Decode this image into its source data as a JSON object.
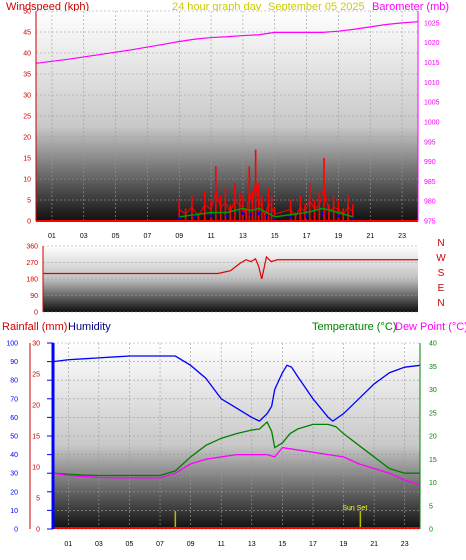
{
  "header": {
    "left_title": "Windspeed (kph)",
    "center_title": "24 hour graph day",
    "date": "September 05 2025",
    "right_title": "Barometer (mb)"
  },
  "middle": {
    "direction_letters": [
      "N",
      "W",
      "S",
      "E",
      "N"
    ]
  },
  "bottom": {
    "rain_title": "Rainfall (mm)",
    "humidity_title": "Humidity",
    "temp_title": "Temperature (°C)",
    "dew_title": "Dew Point (°C)",
    "sun_set_label": "Sun Set"
  },
  "colors": {
    "windspeed": "#ff0000",
    "gust": "#ff0000",
    "wind_avg": "#00a000",
    "wind_dir_scatter": "#0000ff",
    "barometer": "#ff00ff",
    "direction": "#e00000",
    "humidity": "#0000ff",
    "temperature": "#008000",
    "dew_point": "#ff00ff",
    "rain": "#ff0000",
    "sun_marker": "#b8b800",
    "title_red": "#cc0000",
    "title_yellow": "#cccc00",
    "title_magenta": "#ff00ff",
    "title_blue": "#000080",
    "title_green": "#008000"
  },
  "chart_data": [
    {
      "type": "line",
      "name": "wind-and-barometer",
      "x_ticks": [
        "01",
        "03",
        "05",
        "07",
        "09",
        "11",
        "13",
        "15",
        "17",
        "19",
        "21",
        "23"
      ],
      "x_range": [
        0,
        24
      ],
      "ylim_left": [
        0,
        50
      ],
      "yticks_left": [
        0,
        5,
        10,
        15,
        20,
        25,
        30,
        35,
        40,
        45,
        50
      ],
      "ylim_right": [
        975,
        1028
      ],
      "yticks_right": [
        975,
        980,
        985,
        990,
        995,
        1000,
        1005,
        1010,
        1015,
        1020,
        1025
      ],
      "grid": true,
      "series": [
        {
          "axis": "right",
          "x": [
            0,
            1,
            2,
            3,
            4,
            5,
            6,
            7,
            8,
            9,
            10,
            11,
            12,
            13,
            14,
            15,
            16,
            17,
            18,
            19,
            20,
            21,
            22,
            23,
            24
          ],
          "values": [
            1014.8,
            1015.3,
            1015.8,
            1016.4,
            1017.0,
            1017.6,
            1018.2,
            1018.9,
            1019.6,
            1020.3,
            1020.9,
            1021.3,
            1021.5,
            1021.8,
            1022.0,
            1022.6,
            1022.6,
            1022.6,
            1022.6,
            1022.9,
            1023.4,
            1024.0,
            1024.6,
            1025.0,
            1025.3
          ]
        },
        {
          "axis": "left",
          "x": [
            9.0,
            9.4,
            9.8,
            10.2,
            10.6,
            11.0,
            11.3,
            11.6,
            11.9,
            12.2,
            12.5,
            12.8,
            13.0,
            13.2,
            13.4,
            13.6,
            13.8,
            14.0,
            14.2,
            14.4,
            14.6,
            14.8,
            15.0,
            16.0,
            16.3,
            16.6,
            16.9,
            17.2,
            17.5,
            17.8,
            18.1,
            18.4,
            18.7,
            19.0,
            19.3,
            19.6,
            19.9
          ],
          "values": [
            5,
            3,
            6,
            2,
            7,
            5,
            13,
            6,
            8,
            4,
            9,
            7,
            6,
            3,
            13,
            7,
            17,
            9,
            6,
            2,
            8,
            6,
            3,
            5,
            2,
            6,
            4,
            9,
            5,
            7,
            15,
            4,
            6,
            5,
            3,
            6,
            4
          ]
        },
        {
          "axis": "left",
          "x": [
            9.0,
            10.0,
            11.0,
            12.0,
            13.0,
            13.5,
            14.0,
            14.5,
            15.0,
            16.0,
            17.0,
            18.0,
            19.0,
            19.9
          ],
          "values": [
            1,
            1.5,
            2,
            2,
            3,
            2.5,
            3,
            2,
            1,
            1.5,
            2,
            3,
            2,
            1
          ]
        }
      ]
    },
    {
      "type": "line",
      "name": "wind-direction",
      "ylim": [
        0,
        360
      ],
      "yticks": [
        0,
        90,
        180,
        270,
        360
      ],
      "series": [
        {
          "x": [
            0,
            11.2,
            12.0,
            12.6,
            13.0,
            13.3,
            13.6,
            13.8,
            14.0,
            14.3,
            14.6,
            15.0,
            18.0,
            24
          ],
          "values": [
            210,
            210,
            225,
            265,
            285,
            275,
            290,
            250,
            180,
            300,
            275,
            285,
            285,
            285
          ]
        }
      ]
    },
    {
      "type": "line",
      "name": "temperature-humidity-rain",
      "x_ticks": [
        "01",
        "03",
        "05",
        "07",
        "09",
        "11",
        "13",
        "15",
        "17",
        "19",
        "21",
        "23"
      ],
      "x_range": [
        0,
        24
      ],
      "ylim_humidity": [
        0,
        100
      ],
      "yticks_humidity": [
        0,
        10,
        20,
        30,
        40,
        50,
        60,
        70,
        80,
        90,
        100
      ],
      "ylim_rain": [
        0,
        30
      ],
      "yticks_rain": [
        0,
        5,
        10,
        15,
        20,
        25,
        30
      ],
      "ylim_temp": [
        0,
        40
      ],
      "yticks_temp": [
        0,
        5,
        10,
        15,
        20,
        25,
        30,
        35,
        40
      ],
      "grid": true,
      "series": [
        {
          "axis": "humidity",
          "x": [
            0,
            1,
            2,
            3,
            4,
            5,
            6,
            7,
            8,
            9,
            10,
            11,
            12,
            13,
            13.5,
            14,
            14.3,
            14.5,
            15,
            15.3,
            15.6,
            16,
            17,
            17.5,
            18,
            18.3,
            19,
            20,
            21,
            22,
            23,
            24
          ],
          "values": [
            90,
            91,
            91.5,
            92,
            92.5,
            93,
            93,
            93,
            93,
            88,
            81,
            70,
            65,
            60,
            58,
            62,
            66,
            75,
            84,
            88,
            87,
            82,
            70,
            65,
            60,
            58,
            62,
            70,
            78,
            84,
            87,
            88
          ]
        },
        {
          "axis": "temp",
          "x": [
            0,
            1,
            2,
            3,
            4,
            5,
            6,
            7,
            8,
            9,
            10,
            11,
            12,
            13,
            13.5,
            14,
            14.3,
            14.5,
            15,
            15.5,
            16,
            17,
            18,
            18.5,
            19,
            20,
            21,
            22,
            23,
            24
          ],
          "values": [
            12,
            11.8,
            11.6,
            11.5,
            11.5,
            11.5,
            11.5,
            11.5,
            12.5,
            15.5,
            18,
            19.5,
            20.5,
            21.3,
            21.5,
            23,
            21,
            17.5,
            18.5,
            20.5,
            21.5,
            22.5,
            22.5,
            22,
            20.5,
            18,
            15.5,
            13,
            12,
            12
          ]
        },
        {
          "axis": "temp",
          "x": [
            0,
            1,
            2,
            3,
            4,
            5,
            6,
            7,
            8,
            9,
            10,
            11,
            12,
            13,
            14,
            14.5,
            15,
            16,
            17,
            18,
            19,
            20,
            21,
            22,
            23,
            24
          ],
          "values": [
            12,
            11.5,
            11.3,
            11.1,
            11,
            11,
            11,
            11,
            12,
            14,
            15,
            15.5,
            16,
            16,
            16,
            15.5,
            17.5,
            17,
            16.5,
            16,
            15.5,
            14,
            13,
            12,
            10.5,
            9.5
          ]
        },
        {
          "axis": "rain",
          "x": [
            0,
            24
          ],
          "values": [
            0,
            0
          ]
        }
      ],
      "markers": [
        {
          "x": 8.0,
          "label": ""
        },
        {
          "x": 20.1,
          "label": "Sun Set"
        }
      ]
    }
  ]
}
